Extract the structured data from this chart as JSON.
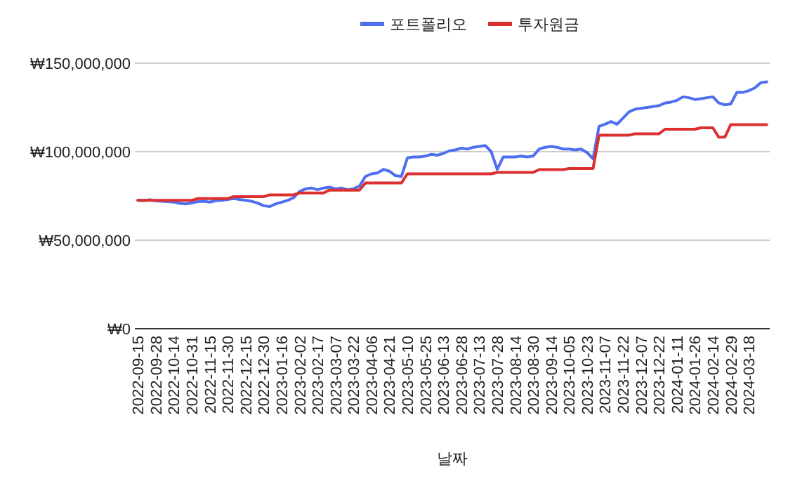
{
  "chart_data": {
    "type": "line",
    "xlabel": "날짜",
    "categories": [
      "2022-09-15",
      null,
      null,
      "2022-09-28",
      null,
      null,
      "2022-10-14",
      null,
      null,
      "2022-10-31",
      null,
      null,
      "2022-11-15",
      null,
      null,
      "2022-11-30",
      null,
      null,
      "2022-12-15",
      null,
      null,
      "2022-12-30",
      null,
      null,
      "2023-01-16",
      null,
      null,
      "2023-02-02",
      null,
      null,
      "2023-02-17",
      null,
      null,
      "2023-03-07",
      null,
      null,
      "2023-03-22",
      null,
      null,
      "2023-04-06",
      null,
      null,
      "2023-04-21",
      null,
      null,
      "2023-05-10",
      null,
      null,
      "2023-05-25",
      null,
      null,
      "2023-06-13",
      null,
      null,
      "2023-06-28",
      null,
      null,
      "2023-07-13",
      null,
      null,
      "2023-07-28",
      null,
      null,
      "2023-08-14",
      null,
      null,
      "2023-08-30",
      null,
      null,
      "2023-09-14",
      null,
      null,
      "2023-10-05",
      null,
      null,
      "2023-10-23",
      null,
      null,
      "2023-11-07",
      null,
      null,
      "2023-11-22",
      null,
      null,
      "2023-12-07",
      null,
      null,
      "2023-12-22",
      null,
      null,
      "2024-01-11",
      null,
      null,
      "2024-01-26",
      null,
      null,
      "2024-02-14",
      null,
      null,
      "2024-02-29",
      null,
      null,
      "2024-03-18",
      null,
      null,
      null
    ],
    "series": [
      {
        "name": "포트폴리오",
        "color": "#4f6ff0",
        "values": [
          72500000,
          72300000,
          72800000,
          72200000,
          72000000,
          71800000,
          71500000,
          70800000,
          70500000,
          71000000,
          71800000,
          72000000,
          71500000,
          72300000,
          72500000,
          73000000,
          73500000,
          73000000,
          72500000,
          72000000,
          71000000,
          69500000,
          69000000,
          70500000,
          71500000,
          72500000,
          74000000,
          77500000,
          79000000,
          79500000,
          78500000,
          79500000,
          80000000,
          79000000,
          79500000,
          78500000,
          79000000,
          80500000,
          86000000,
          87500000,
          88000000,
          90000000,
          89000000,
          86500000,
          86000000,
          96500000,
          97000000,
          97000000,
          97500000,
          98500000,
          98000000,
          99000000,
          100500000,
          101000000,
          102000000,
          101500000,
          102500000,
          103000000,
          103500000,
          100000000,
          90000000,
          97000000,
          97000000,
          97000000,
          97500000,
          97000000,
          97500000,
          101500000,
          102500000,
          103000000,
          102500000,
          101500000,
          101500000,
          101000000,
          101500000,
          99500000,
          96000000,
          114300000,
          115500000,
          117000000,
          115500000,
          119000000,
          122500000,
          124000000,
          124500000,
          125000000,
          125500000,
          126000000,
          127500000,
          128000000,
          129000000,
          131000000,
          130500000,
          129500000,
          130000000,
          130500000,
          131000000,
          127500000,
          126500000,
          127000000,
          133500000,
          133500000,
          134500000,
          136000000,
          139000000,
          139500000
        ]
      },
      {
        "name": "투자원금",
        "color": "#dc2f2f",
        "values": [
          72500000,
          72500000,
          72500000,
          72500000,
          72500000,
          72500000,
          72500000,
          72500000,
          72500000,
          72500000,
          73500000,
          73500000,
          73500000,
          73500000,
          73500000,
          73500000,
          74600000,
          74600000,
          74600000,
          74600000,
          74600000,
          74600000,
          75600000,
          75600000,
          75600000,
          75600000,
          75600000,
          76700000,
          76700000,
          76700000,
          76700000,
          76700000,
          78300000,
          78300000,
          78300000,
          78300000,
          78300000,
          78300000,
          82300000,
          82300000,
          82300000,
          82300000,
          82300000,
          82300000,
          82300000,
          87500000,
          87500000,
          87500000,
          87500000,
          87500000,
          87500000,
          87500000,
          87500000,
          87500000,
          87500000,
          87500000,
          87500000,
          87500000,
          87500000,
          87500000,
          88300000,
          88300000,
          88300000,
          88300000,
          88300000,
          88300000,
          88300000,
          89900000,
          89900000,
          89900000,
          89900000,
          89900000,
          90500000,
          90500000,
          90500000,
          90500000,
          90500000,
          109300000,
          109300000,
          109300000,
          109300000,
          109300000,
          109300000,
          110100000,
          110100000,
          110100000,
          110100000,
          110100000,
          112700000,
          112700000,
          112700000,
          112700000,
          112700000,
          112700000,
          113500000,
          113500000,
          113500000,
          108200000,
          108200000,
          115300000,
          115300000,
          115300000,
          115300000,
          115300000,
          115300000,
          115300000
        ]
      }
    ],
    "ylim": [
      0,
      150000000
    ],
    "yticks": [
      {
        "value": 0,
        "label": "₩0"
      },
      {
        "value": 50000000,
        "label": "₩50,000,000"
      },
      {
        "value": 100000000,
        "label": "₩100,000,000"
      },
      {
        "value": 150000000,
        "label": "₩150,000,000"
      }
    ],
    "grid": "y",
    "legend": "top",
    "marker": "none",
    "line_style": "solid"
  }
}
